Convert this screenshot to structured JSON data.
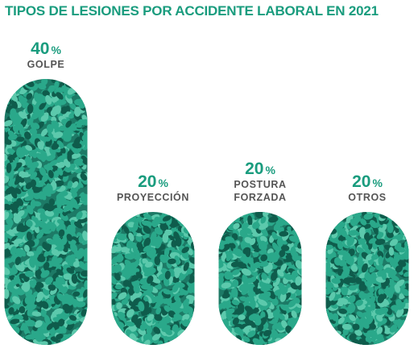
{
  "chart_data": {
    "type": "bar",
    "title": "TIPOS DE LESIONES POR ACCIDENTE LABORAL EN 2021",
    "categories": [
      [
        "GOLPE"
      ],
      [
        "PROYECCIÓN"
      ],
      [
        "POSTURA",
        "FORZADA"
      ],
      [
        "OTROS"
      ]
    ],
    "values": [
      40,
      20,
      20,
      20
    ],
    "value_suffix": "%",
    "ylim": [
      0,
      40
    ],
    "grid": false,
    "legend": "none"
  },
  "colors": {
    "title": "#1a9c7e",
    "value": "#1a9c7e",
    "label": "#555555",
    "bar_base": "#1d7a66",
    "pellet": "#2aa88a",
    "pellet_light": "#5cc9ac",
    "pellet_dark": "#0f5c4c"
  }
}
